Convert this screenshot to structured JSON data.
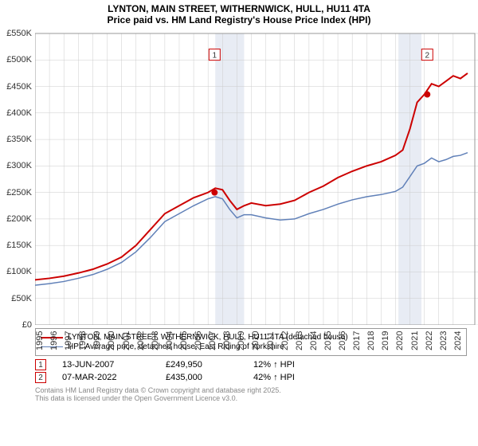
{
  "title_line1": "LYNTON, MAIN STREET, WITHERNWICK, HULL, HU11 4TA",
  "title_line2": "Price paid vs. HM Land Registry's House Price Index (HPI)",
  "chart": {
    "type": "line",
    "background_color": "#ffffff",
    "grid_color": "#cccccc",
    "band_color": "#e8ecf4",
    "xlim": [
      1995,
      2025.5
    ],
    "ylim": [
      0,
      550000
    ],
    "y_ticks": [
      0,
      50000,
      100000,
      150000,
      200000,
      250000,
      300000,
      350000,
      400000,
      450000,
      500000,
      550000
    ],
    "y_tick_labels": [
      "£0",
      "£50K",
      "£100K",
      "£150K",
      "£200K",
      "£250K",
      "£300K",
      "£350K",
      "£400K",
      "£450K",
      "£500K",
      "£550K"
    ],
    "x_ticks": [
      1995,
      1996,
      1997,
      1998,
      1999,
      2000,
      2001,
      2002,
      2003,
      2004,
      2005,
      2006,
      2007,
      2008,
      2009,
      2010,
      2011,
      2012,
      2013,
      2014,
      2015,
      2016,
      2017,
      2018,
      2019,
      2020,
      2021,
      2022,
      2023,
      2024
    ],
    "series": [
      {
        "name": "LYNTON, MAIN STREET, WITHERNWICK, HULL, HU11 4TA (detached house)",
        "color": "#cc0000",
        "line_width": 2,
        "points": [
          [
            1995,
            85000
          ],
          [
            1996,
            88000
          ],
          [
            1997,
            92000
          ],
          [
            1998,
            98000
          ],
          [
            1999,
            105000
          ],
          [
            2000,
            115000
          ],
          [
            2001,
            128000
          ],
          [
            2002,
            150000
          ],
          [
            2003,
            180000
          ],
          [
            2004,
            210000
          ],
          [
            2005,
            225000
          ],
          [
            2006,
            240000
          ],
          [
            2007,
            250000
          ],
          [
            2007.5,
            258000
          ],
          [
            2008,
            255000
          ],
          [
            2008.5,
            235000
          ],
          [
            2009,
            218000
          ],
          [
            2009.5,
            225000
          ],
          [
            2010,
            230000
          ],
          [
            2011,
            225000
          ],
          [
            2012,
            228000
          ],
          [
            2013,
            235000
          ],
          [
            2014,
            250000
          ],
          [
            2015,
            262000
          ],
          [
            2016,
            278000
          ],
          [
            2017,
            290000
          ],
          [
            2018,
            300000
          ],
          [
            2019,
            308000
          ],
          [
            2020,
            320000
          ],
          [
            2020.5,
            330000
          ],
          [
            2021,
            370000
          ],
          [
            2021.5,
            420000
          ],
          [
            2022,
            435000
          ],
          [
            2022.5,
            455000
          ],
          [
            2023,
            450000
          ],
          [
            2023.5,
            460000
          ],
          [
            2024,
            470000
          ],
          [
            2024.5,
            465000
          ],
          [
            2025,
            475000
          ]
        ]
      },
      {
        "name": "HPI: Average price, detached house, East Riding of Yorkshire",
        "color": "#6080b8",
        "line_width": 1.5,
        "points": [
          [
            1995,
            75000
          ],
          [
            1996,
            78000
          ],
          [
            1997,
            82000
          ],
          [
            1998,
            88000
          ],
          [
            1999,
            95000
          ],
          [
            2000,
            105000
          ],
          [
            2001,
            118000
          ],
          [
            2002,
            138000
          ],
          [
            2003,
            165000
          ],
          [
            2004,
            195000
          ],
          [
            2005,
            210000
          ],
          [
            2006,
            225000
          ],
          [
            2007,
            238000
          ],
          [
            2007.5,
            242000
          ],
          [
            2008,
            238000
          ],
          [
            2008.5,
            218000
          ],
          [
            2009,
            202000
          ],
          [
            2009.5,
            208000
          ],
          [
            2010,
            208000
          ],
          [
            2011,
            202000
          ],
          [
            2012,
            198000
          ],
          [
            2013,
            200000
          ],
          [
            2014,
            210000
          ],
          [
            2015,
            218000
          ],
          [
            2016,
            228000
          ],
          [
            2017,
            236000
          ],
          [
            2018,
            242000
          ],
          [
            2019,
            246000
          ],
          [
            2020,
            252000
          ],
          [
            2020.5,
            260000
          ],
          [
            2021,
            280000
          ],
          [
            2021.5,
            300000
          ],
          [
            2022,
            305000
          ],
          [
            2022.5,
            315000
          ],
          [
            2023,
            308000
          ],
          [
            2023.5,
            312000
          ],
          [
            2024,
            318000
          ],
          [
            2024.5,
            320000
          ],
          [
            2025,
            325000
          ]
        ]
      }
    ],
    "markers": [
      {
        "id": "1",
        "x": 2007.45,
        "y": 249950,
        "color": "#cc0000",
        "label_y": 510000
      },
      {
        "id": "2",
        "x": 2022.2,
        "y": 435000,
        "color": "#cc0000",
        "label_y": 510000
      }
    ],
    "y_bands": [
      [
        2007.5,
        2009.5
      ],
      [
        2020.2,
        2021.8
      ]
    ]
  },
  "marker_rows": [
    {
      "id": "1",
      "date": "13-JUN-2007",
      "price": "£249,950",
      "pct": "12% ↑ HPI",
      "color": "#cc0000"
    },
    {
      "id": "2",
      "date": "07-MAR-2022",
      "price": "£435,000",
      "pct": "42% ↑ HPI",
      "color": "#cc0000"
    }
  ],
  "footer_line1": "Contains HM Land Registry data © Crown copyright and database right 2025.",
  "footer_line2": "This data is licensed under the Open Government Licence v3.0."
}
